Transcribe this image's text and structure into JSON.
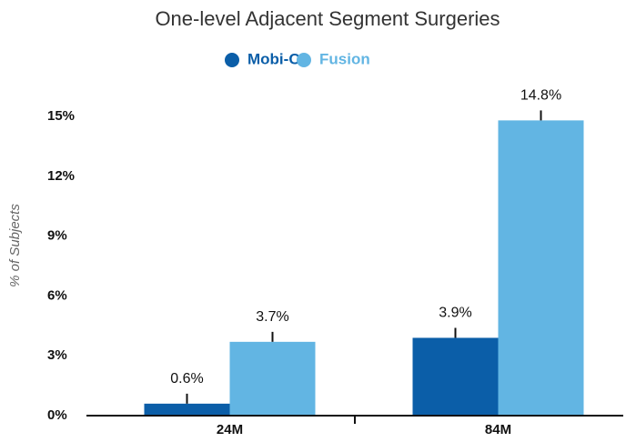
{
  "chart_data": {
    "type": "bar",
    "title": "One-level Adjacent Segment Surgeries",
    "y_label": "% of Subjects",
    "categories": [
      "24M",
      "84M"
    ],
    "series": [
      {
        "name": "Mobi-C",
        "color": "#0b5ea8",
        "values": [
          0.6,
          3.9
        ],
        "value_labels": [
          "0.6%",
          "3.9%"
        ],
        "errors": [
          0.5,
          0.5
        ]
      },
      {
        "name": "Fusion",
        "color": "#62b5e3",
        "values": [
          3.7,
          14.8
        ],
        "value_labels": [
          "3.7%",
          "14.8%"
        ],
        "errors": [
          0.5,
          0.5
        ]
      }
    ],
    "ylim": [
      0,
      15
    ],
    "yticks": [
      {
        "value": 0,
        "label": "0%"
      },
      {
        "value": 3,
        "label": "3%"
      },
      {
        "value": 6,
        "label": "6%"
      },
      {
        "value": 9,
        "label": "9%"
      },
      {
        "value": 12,
        "label": "12%"
      },
      {
        "value": 15,
        "label": "15%"
      }
    ],
    "legend": "top",
    "grid": false
  }
}
